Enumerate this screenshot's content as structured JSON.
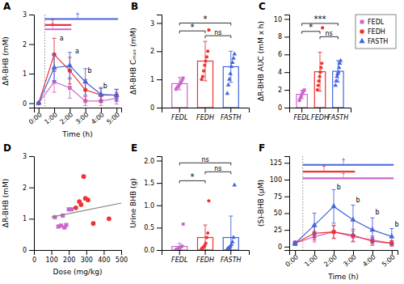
{
  "chart_data": [
    {
      "type": "line",
      "title": "A",
      "xlabel": "Time (h)",
      "ylabel": "ΔR-BHB (mM)",
      "x": [
        0,
        1,
        2,
        3,
        4,
        5
      ],
      "xlim": [
        -0.3,
        5.3
      ],
      "xticks": [
        {
          "value": 0,
          "label": "0:00"
        },
        {
          "value": 1,
          "label": "1:00"
        },
        {
          "value": 2,
          "label": "2:00"
        },
        {
          "value": 3,
          "label": "3:00"
        },
        {
          "value": 4,
          "label": "4:00"
        },
        {
          "value": 5,
          "label": "5:00"
        }
      ],
      "ylim": [
        -0.15,
        3.0
      ],
      "yticks": [
        0,
        1,
        2,
        3
      ],
      "series": [
        {
          "color": "#CC66CC",
          "marker": "square",
          "values": [
            0.0,
            0.72,
            0.52,
            0.07,
            0.07,
            0.17
          ],
          "errors": [
            0.0,
            0.35,
            0.35,
            0.15,
            0.15,
            0.2
          ]
        },
        {
          "color": "#EE3333",
          "marker": "circle",
          "values": [
            0.0,
            1.65,
            1.1,
            0.45,
            0.28,
            0.27
          ],
          "errors": [
            0.0,
            0.55,
            0.45,
            0.35,
            0.25,
            0.2
          ]
        },
        {
          "color": "#4466DD",
          "marker": "triangle",
          "values": [
            0.0,
            1.2,
            1.27,
            0.72,
            0.3,
            0.27
          ],
          "errors": [
            0.0,
            0.45,
            0.45,
            0.45,
            0.2,
            0.2
          ]
        }
      ],
      "vline": 0.4,
      "significance_bars": [
        {
          "y": 2.5,
          "x": [
            0.4,
            2.1
          ],
          "color": "#CC66CC",
          "text": "†",
          "text_x": 0.9,
          "text_y": 2.56
        },
        {
          "y": 2.65,
          "x": [
            0.4,
            2.1
          ],
          "color": "#EE3333",
          "text": "†",
          "text_x": 0.9,
          "text_y": 2.71
        },
        {
          "y": 2.85,
          "x": [
            0.4,
            5.1
          ],
          "color": "#4466DD",
          "text": "†",
          "text_x": 2.5,
          "text_y": 2.9
        }
      ],
      "annotations": [
        {
          "text": "a",
          "x": 1.35,
          "y": 2.12
        },
        {
          "text": "a",
          "x": 2.35,
          "y": 1.68
        },
        {
          "text": "b",
          "x": 3.15,
          "y": 1.03
        },
        {
          "text": "b",
          "x": 4.15,
          "y": 0.52
        }
      ]
    },
    {
      "type": "bar",
      "title": "B",
      "ylabel": "ΔR-BHB Cₘₐₓ (mM)",
      "categories": [
        "FEDL",
        "FEDH",
        "FASTH"
      ],
      "values": [
        0.85,
        1.65,
        1.45
      ],
      "errors": [
        0.22,
        0.7,
        0.55
      ],
      "colors": [
        "#CC66CC",
        "#EE3333",
        "#4466DD"
      ],
      "markers": [
        "square",
        "circle",
        "triangle"
      ],
      "points": [
        [
          0.65,
          0.7,
          0.75,
          0.8,
          0.85,
          0.9,
          0.98,
          1.05
        ],
        [
          1.0,
          1.1,
          1.3,
          1.5,
          1.65,
          1.8,
          2.0,
          2.75
        ],
        [
          0.5,
          0.8,
          1.0,
          1.2,
          1.45,
          1.6,
          1.75,
          1.9
        ]
      ],
      "ylim": [
        0,
        3.3
      ],
      "yticks": [
        0,
        1,
        2,
        3
      ],
      "brackets": [
        {
          "from": "FEDL",
          "to": "FEDH",
          "y": 2.72,
          "text": "*"
        },
        {
          "from": "FEDH",
          "to": "FASTH",
          "y": 2.55,
          "text": "ns"
        },
        {
          "from": "FEDL",
          "to": "FASTH",
          "y": 3.0,
          "text": "*"
        }
      ]
    },
    {
      "type": "bar",
      "title": "C",
      "ylabel": "ΔR-BHB AUC (mM x h)",
      "categories": [
        "FEDL",
        "FEDH",
        "FASTH"
      ],
      "values": [
        1.5,
        4.05,
        4.1
      ],
      "errors": [
        0.45,
        2.2,
        1.2
      ],
      "colors": [
        "#CC66CC",
        "#EE3333",
        "#4466DD"
      ],
      "markers": [
        "square",
        "circle",
        "triangle"
      ],
      "points": [
        [
          0.8,
          1.0,
          1.2,
          1.4,
          1.6,
          1.8,
          1.9,
          2.0
        ],
        [
          2.0,
          2.5,
          3.0,
          3.5,
          4.0,
          4.5,
          5.0,
          9.0
        ],
        [
          2.5,
          3.0,
          3.5,
          3.8,
          4.0,
          4.5,
          5.0,
          5.3
        ]
      ],
      "ylim": [
        0,
        10.5
      ],
      "yticks": [
        0,
        2,
        4,
        6,
        8,
        10
      ],
      "legend": "right",
      "brackets": [
        {
          "from": "FEDL",
          "to": "FEDH",
          "y": 8.6,
          "text": "*"
        },
        {
          "from": "FEDH",
          "to": "FASTH",
          "y": 8.0,
          "text": "ns"
        },
        {
          "from": "FEDL",
          "to": "FASTH",
          "y": 9.5,
          "text": "***"
        }
      ]
    },
    {
      "type": "scatter",
      "title": "D",
      "xlabel": "Dose (mg/kg)",
      "ylabel": "ΔR-BHB (mM)",
      "xlim": [
        0,
        500
      ],
      "xticks": [
        0,
        100,
        200,
        300,
        400,
        500
      ],
      "ylim": [
        0,
        3.0
      ],
      "yticks": [
        0,
        1,
        2,
        3
      ],
      "series": [
        {
          "color": "#CC66CC",
          "marker": "square",
          "x": [
            120,
            140,
            155,
            165,
            175,
            185,
            200,
            215
          ],
          "values": [
            1.05,
            0.75,
            0.78,
            1.1,
            0.72,
            0.8,
            1.3,
            1.3
          ]
        },
        {
          "color": "#EE3333",
          "marker": "circle",
          "x": [
            240,
            260,
            270,
            285,
            295,
            310,
            340,
            430
          ],
          "values": [
            1.35,
            1.55,
            1.45,
            2.35,
            1.65,
            1.6,
            0.85,
            1.0
          ]
        },
        {
          "type": "line",
          "color": "gray",
          "x": [
            100,
            500
          ],
          "values": [
            1.05,
            1.5
          ]
        }
      ]
    },
    {
      "type": "bar",
      "title": "E",
      "ylabel": "Urine BHB (g)",
      "categories": [
        "FEDL",
        "FEDH",
        "FASTH"
      ],
      "values": [
        0.08,
        0.28,
        0.28
      ],
      "errors": [
        0.07,
        0.28,
        0.48
      ],
      "colors": [
        "#CC66CC",
        "#EE3333",
        "#4466DD"
      ],
      "markers": [
        "square",
        "circle",
        "triangle"
      ],
      "points": [
        [
          0.01,
          0.02,
          0.03,
          0.04,
          0.06,
          0.07,
          0.09,
          0.58
        ],
        [
          0.03,
          0.05,
          0.07,
          0.1,
          0.15,
          0.28,
          0.38,
          1.1
        ],
        [
          0.02,
          0.04,
          0.05,
          0.08,
          0.12,
          0.18,
          0.28,
          1.45
        ]
      ],
      "ylim": [
        0,
        2.1
      ],
      "yticks": [
        {
          "value": 0.0,
          "label": "0.0"
        },
        0.5,
        {
          "value": 1.0,
          "label": "1.0"
        },
        1.5,
        {
          "value": 2.0,
          "label": "2.0"
        }
      ],
      "brackets": [
        {
          "from": "FEDL",
          "to": "FEDH",
          "y": 1.55,
          "text": "*"
        },
        {
          "from": "FEDH",
          "to": "FASTH",
          "y": 1.75,
          "text": "ns"
        },
        {
          "from": "FEDL",
          "to": "FASTH",
          "y": 1.95,
          "text": "ns"
        }
      ]
    },
    {
      "type": "line",
      "title": "F",
      "xlabel": "Time (h)",
      "ylabel": "(S)-BHB (μM)",
      "x": [
        0,
        1,
        2,
        3,
        4,
        5
      ],
      "xlim": [
        -0.3,
        5.3
      ],
      "xticks": [
        {
          "value": 0,
          "label": "0:00"
        },
        {
          "value": 1,
          "label": "1:00"
        },
        {
          "value": 2,
          "label": "2:00"
        },
        {
          "value": 3,
          "label": "3:00"
        },
        {
          "value": 4,
          "label": "4:00"
        },
        {
          "value": 5,
          "label": "5:00"
        }
      ],
      "ylim": [
        -5,
        135
      ],
      "yticks": [
        0,
        25,
        50,
        75,
        100,
        125
      ],
      "series": [
        {
          "color": "#CC66CC",
          "marker": "square",
          "values": [
            5,
            15,
            22,
            15,
            10,
            5
          ],
          "errors": [
            3,
            8,
            9,
            8,
            6,
            4
          ]
        },
        {
          "color": "#EE3333",
          "marker": "circle",
          "values": [
            5,
            20,
            22,
            17,
            8,
            5
          ],
          "errors": [
            3,
            10,
            10,
            9,
            6,
            4
          ]
        },
        {
          "color": "#4466DD",
          "marker": "triangle",
          "values": [
            5,
            32,
            60,
            40,
            25,
            15
          ],
          "errors": [
            3,
            18,
            25,
            22,
            18,
            12
          ]
        }
      ],
      "vline": 0.4,
      "significance_bars": [
        {
          "y": 102,
          "x": [
            0.4,
            5.1
          ],
          "color": "#CC66CC",
          "text": "†",
          "text_x": 2.5,
          "text_y": 104
        },
        {
          "y": 112,
          "x": [
            0.4,
            3.1
          ],
          "color": "#EE3333",
          "text": "†",
          "text_x": 1.5,
          "text_y": 114
        },
        {
          "y": 122,
          "x": [
            0.4,
            5.1
          ],
          "color": "#4466DD",
          "text": "†",
          "text_x": 2.5,
          "text_y": 124
        }
      ],
      "annotations": [
        {
          "text": "b",
          "x": 2.15,
          "y": 86
        },
        {
          "text": "b",
          "x": 3.15,
          "y": 66
        },
        {
          "text": "b",
          "x": 4.15,
          "y": 48
        },
        {
          "text": "b",
          "x": 5.15,
          "y": 30
        }
      ]
    }
  ]
}
